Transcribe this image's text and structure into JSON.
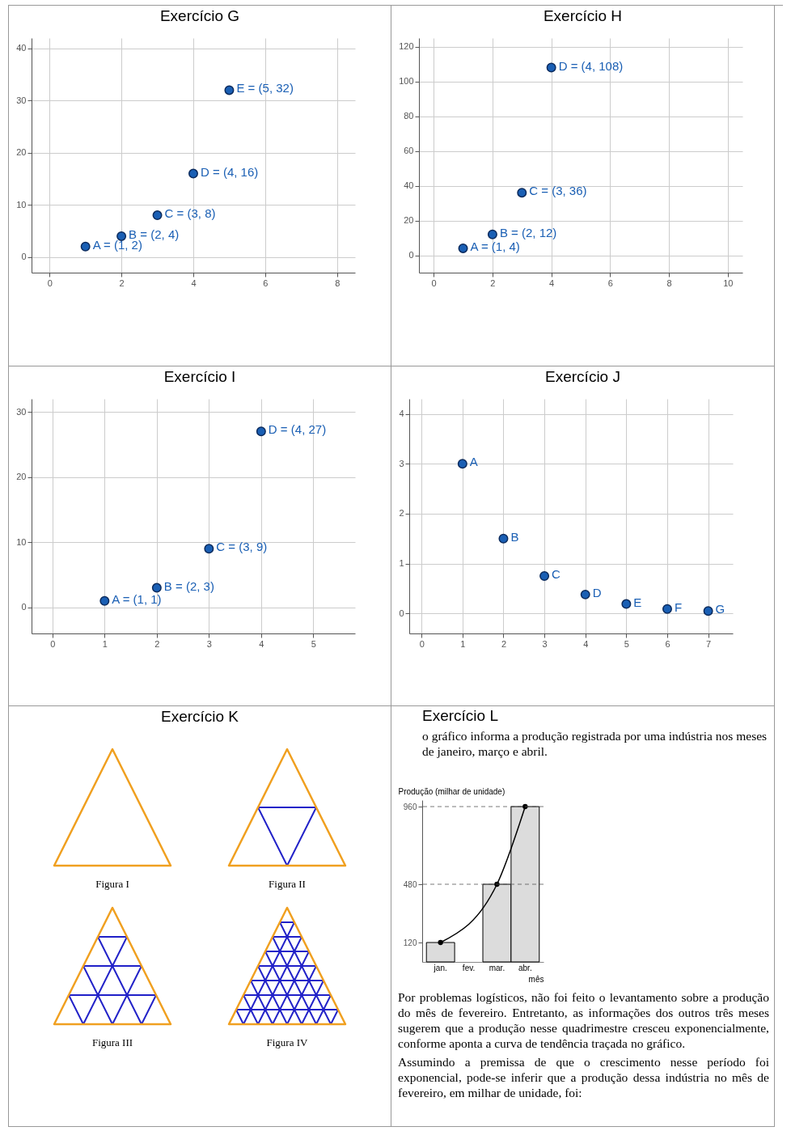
{
  "chart_data": [
    {
      "type": "scatter",
      "title": "Exercício G",
      "x": [
        1,
        2,
        3,
        4,
        5
      ],
      "values": [
        2,
        4,
        8,
        16,
        32
      ],
      "value_labels": [
        "A = (1, 2)",
        "B = (2, 4)",
        "C = (3, 8)",
        "D = (4, 16)",
        "E = (5, 32)"
      ],
      "color": "#1a5fb4",
      "xlim": [
        -0.5,
        8.5
      ],
      "ylim": [
        -3,
        42
      ],
      "xticks": [
        0,
        2,
        4,
        6,
        8
      ],
      "yticks": [
        0,
        10,
        20,
        30,
        40
      ],
      "grid": true,
      "marker": "circle"
    },
    {
      "type": "scatter",
      "title": "Exercício H",
      "x": [
        1,
        2,
        3,
        4
      ],
      "values": [
        4,
        12,
        36,
        108
      ],
      "value_labels": [
        "A = (1, 4)",
        "B = (2, 12)",
        "C = (3, 36)",
        "D = (4, 108)"
      ],
      "color": "#1a5fb4",
      "xlim": [
        -0.5,
        10.5
      ],
      "ylim": [
        -10,
        125
      ],
      "xticks": [
        0,
        2,
        4,
        6,
        8,
        10
      ],
      "yticks": [
        0,
        20,
        40,
        60,
        80,
        100,
        120
      ],
      "grid": true,
      "marker": "circle"
    },
    {
      "type": "scatter",
      "title": "Exercício I",
      "x": [
        1,
        2,
        3,
        4
      ],
      "values": [
        1,
        3,
        9,
        27
      ],
      "value_labels": [
        "A = (1, 1)",
        "B = (2, 3)",
        "C = (3, 9)",
        "D = (4, 27)"
      ],
      "color": "#1a5fb4",
      "xlim": [
        -0.4,
        5.8
      ],
      "ylim": [
        -4,
        32
      ],
      "xticks": [
        0,
        1,
        2,
        3,
        4,
        5
      ],
      "yticks": [
        0,
        10,
        20,
        30
      ],
      "grid": true,
      "marker": "circle"
    },
    {
      "type": "scatter",
      "title": "Exercício J",
      "x": [
        1,
        2,
        3,
        4,
        5,
        6,
        7
      ],
      "values": [
        3,
        1.5,
        0.75,
        0.38,
        0.19,
        0.09,
        0.05
      ],
      "value_labels": [
        "A",
        "B",
        "C",
        "D",
        "E",
        "F",
        "G"
      ],
      "color": "#1a5fb4",
      "xlim": [
        -0.3,
        7.6
      ],
      "ylim": [
        -0.4,
        4.3
      ],
      "xticks": [
        0,
        1,
        2,
        3,
        4,
        5,
        6,
        7
      ],
      "yticks": [
        0,
        1,
        2,
        3,
        4
      ],
      "grid": true,
      "marker": "circle"
    },
    {
      "type": "other",
      "title": "Exercício K",
      "annotations": [
        "Figura I",
        "Figura II",
        "Figura III",
        "Figura IV"
      ]
    },
    {
      "type": "bar",
      "title": "Exercício L",
      "subtitle": "o gráfico informa a produção registrada por uma indústria nos meses de janeiro, março e abril.",
      "categories": [
        "jan.",
        "fev.",
        "mar.",
        "abr."
      ],
      "series": [
        {
          "type": "bar",
          "color": "#dcdcdc",
          "values": [
            120,
            null,
            480,
            960
          ]
        },
        {
          "type": "line",
          "color": "#000000",
          "values": [
            120,
            null,
            480,
            960
          ]
        }
      ],
      "ylim": [
        0,
        1000
      ],
      "yticks": [
        120,
        480,
        960
      ],
      "ylabel": "Produção (milhar de unidade)",
      "xlabel": "mês",
      "marker": "circle",
      "ref_lines": [
        {
          "axis": "y",
          "value": 480,
          "line_style": "dashed"
        },
        {
          "axis": "y",
          "value": 960,
          "line_style": "dashed"
        }
      ],
      "annotations": [
        "Por problemas logísticos, não foi feito o levantamento sobre a produção do mês de  fevereiro. Entretanto, as informações dos outros três meses sugerem que a produção nesse quadrimestre cresceu exponencialmente, conforme aponta a curva de tendência traçada no gráfico.",
        "Assumindo a premissa de que o crescimento nesse período foi exponencial, pode-se inferir que a produção dessa indústria no mês de fevereiro, em milhar de unidade, foi:"
      ]
    }
  ]
}
